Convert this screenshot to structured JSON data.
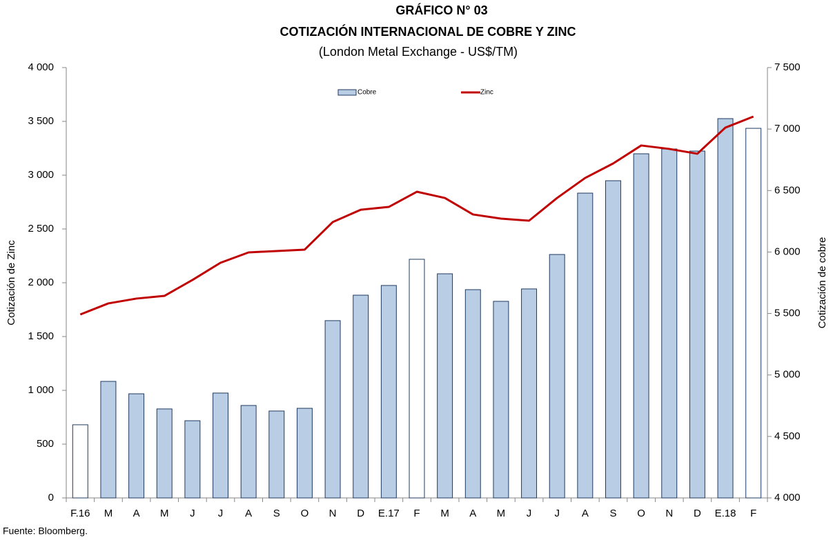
{
  "chart_data": {
    "type": "bar_line",
    "title": "GRÁFICO N° 03",
    "subtitle": "COTIZACIÓN INTERNACIONAL DE COBRE Y ZINC",
    "subtitle2": "(London Metal Exchange - US$/TM)",
    "ylabel": "Cotización de Zinc",
    "y2label": "Cotización de cobre",
    "source": "Fuente: Bloomberg.",
    "categories": [
      "F.16",
      "M",
      "A",
      "M",
      "J",
      "J",
      "A",
      "S",
      "O",
      "N",
      "D",
      "E.17",
      "F",
      "M",
      "A",
      "M",
      "J",
      "J",
      "A",
      "S",
      "O",
      "N",
      "D",
      "E.18",
      "F"
    ],
    "series": [
      {
        "name": "Cobre",
        "type": "bar",
        "axis": "y2",
        "color": "#b9cde5",
        "colors": [
          "#ffffff",
          "#b9cde5",
          "#b9cde5",
          "#b9cde5",
          "#b9cde5",
          "#b9cde5",
          "#b9cde5",
          "#b9cde5",
          "#b9cde5",
          "#b9cde5",
          "#b9cde5",
          "#b9cde5",
          "#ffffff",
          "#b9cde5",
          "#b9cde5",
          "#b9cde5",
          "#b9cde5",
          "#b9cde5",
          "#b9cde5",
          "#b9cde5",
          "#b9cde5",
          "#b9cde5",
          "#b9cde5",
          "#b9cde5",
          "#ffffff"
        ],
        "values": [
          4595,
          4948,
          4847,
          4724,
          4628,
          4853,
          4752,
          4707,
          4729,
          5442,
          5649,
          5728,
          5941,
          5823,
          5694,
          5599,
          5700,
          5980,
          6479,
          6580,
          6799,
          6838,
          6821,
          7085,
          7006
        ]
      },
      {
        "name": "Zinc",
        "type": "line",
        "axis": "y",
        "color": "#c00000",
        "values": [
          1705,
          1808,
          1853,
          1878,
          2026,
          2186,
          2282,
          2295,
          2308,
          2564,
          2679,
          2705,
          2846,
          2788,
          2635,
          2596,
          2577,
          2788,
          2974,
          3109,
          3276,
          3244,
          3199,
          3442,
          3545
        ]
      }
    ],
    "ylim": [
      0,
      4000
    ],
    "yticks": [
      0,
      500,
      {
        "value": 1000,
        "label": "1 000"
      },
      {
        "value": 1500,
        "label": "1 500"
      },
      {
        "value": 2000,
        "label": "2 000"
      },
      {
        "value": 2500,
        "label": "2 500"
      },
      {
        "value": 3000,
        "label": "3 000"
      },
      {
        "value": 3500,
        "label": "3 500"
      },
      {
        "value": 4000,
        "label": "4 000"
      }
    ],
    "y2lim": [
      4000,
      7500
    ],
    "y2ticks": [
      {
        "value": 4000,
        "label": "4 000"
      },
      {
        "value": 4500,
        "label": "4 500"
      },
      {
        "value": 5000,
        "label": "5 000"
      },
      {
        "value": 5500,
        "label": "5 500"
      },
      {
        "value": 6000,
        "label": "6 000"
      },
      {
        "value": 6500,
        "label": "6 500"
      },
      {
        "value": 7000,
        "label": "7 000"
      },
      {
        "value": 7500,
        "label": "7 500"
      }
    ],
    "grid": false
  }
}
